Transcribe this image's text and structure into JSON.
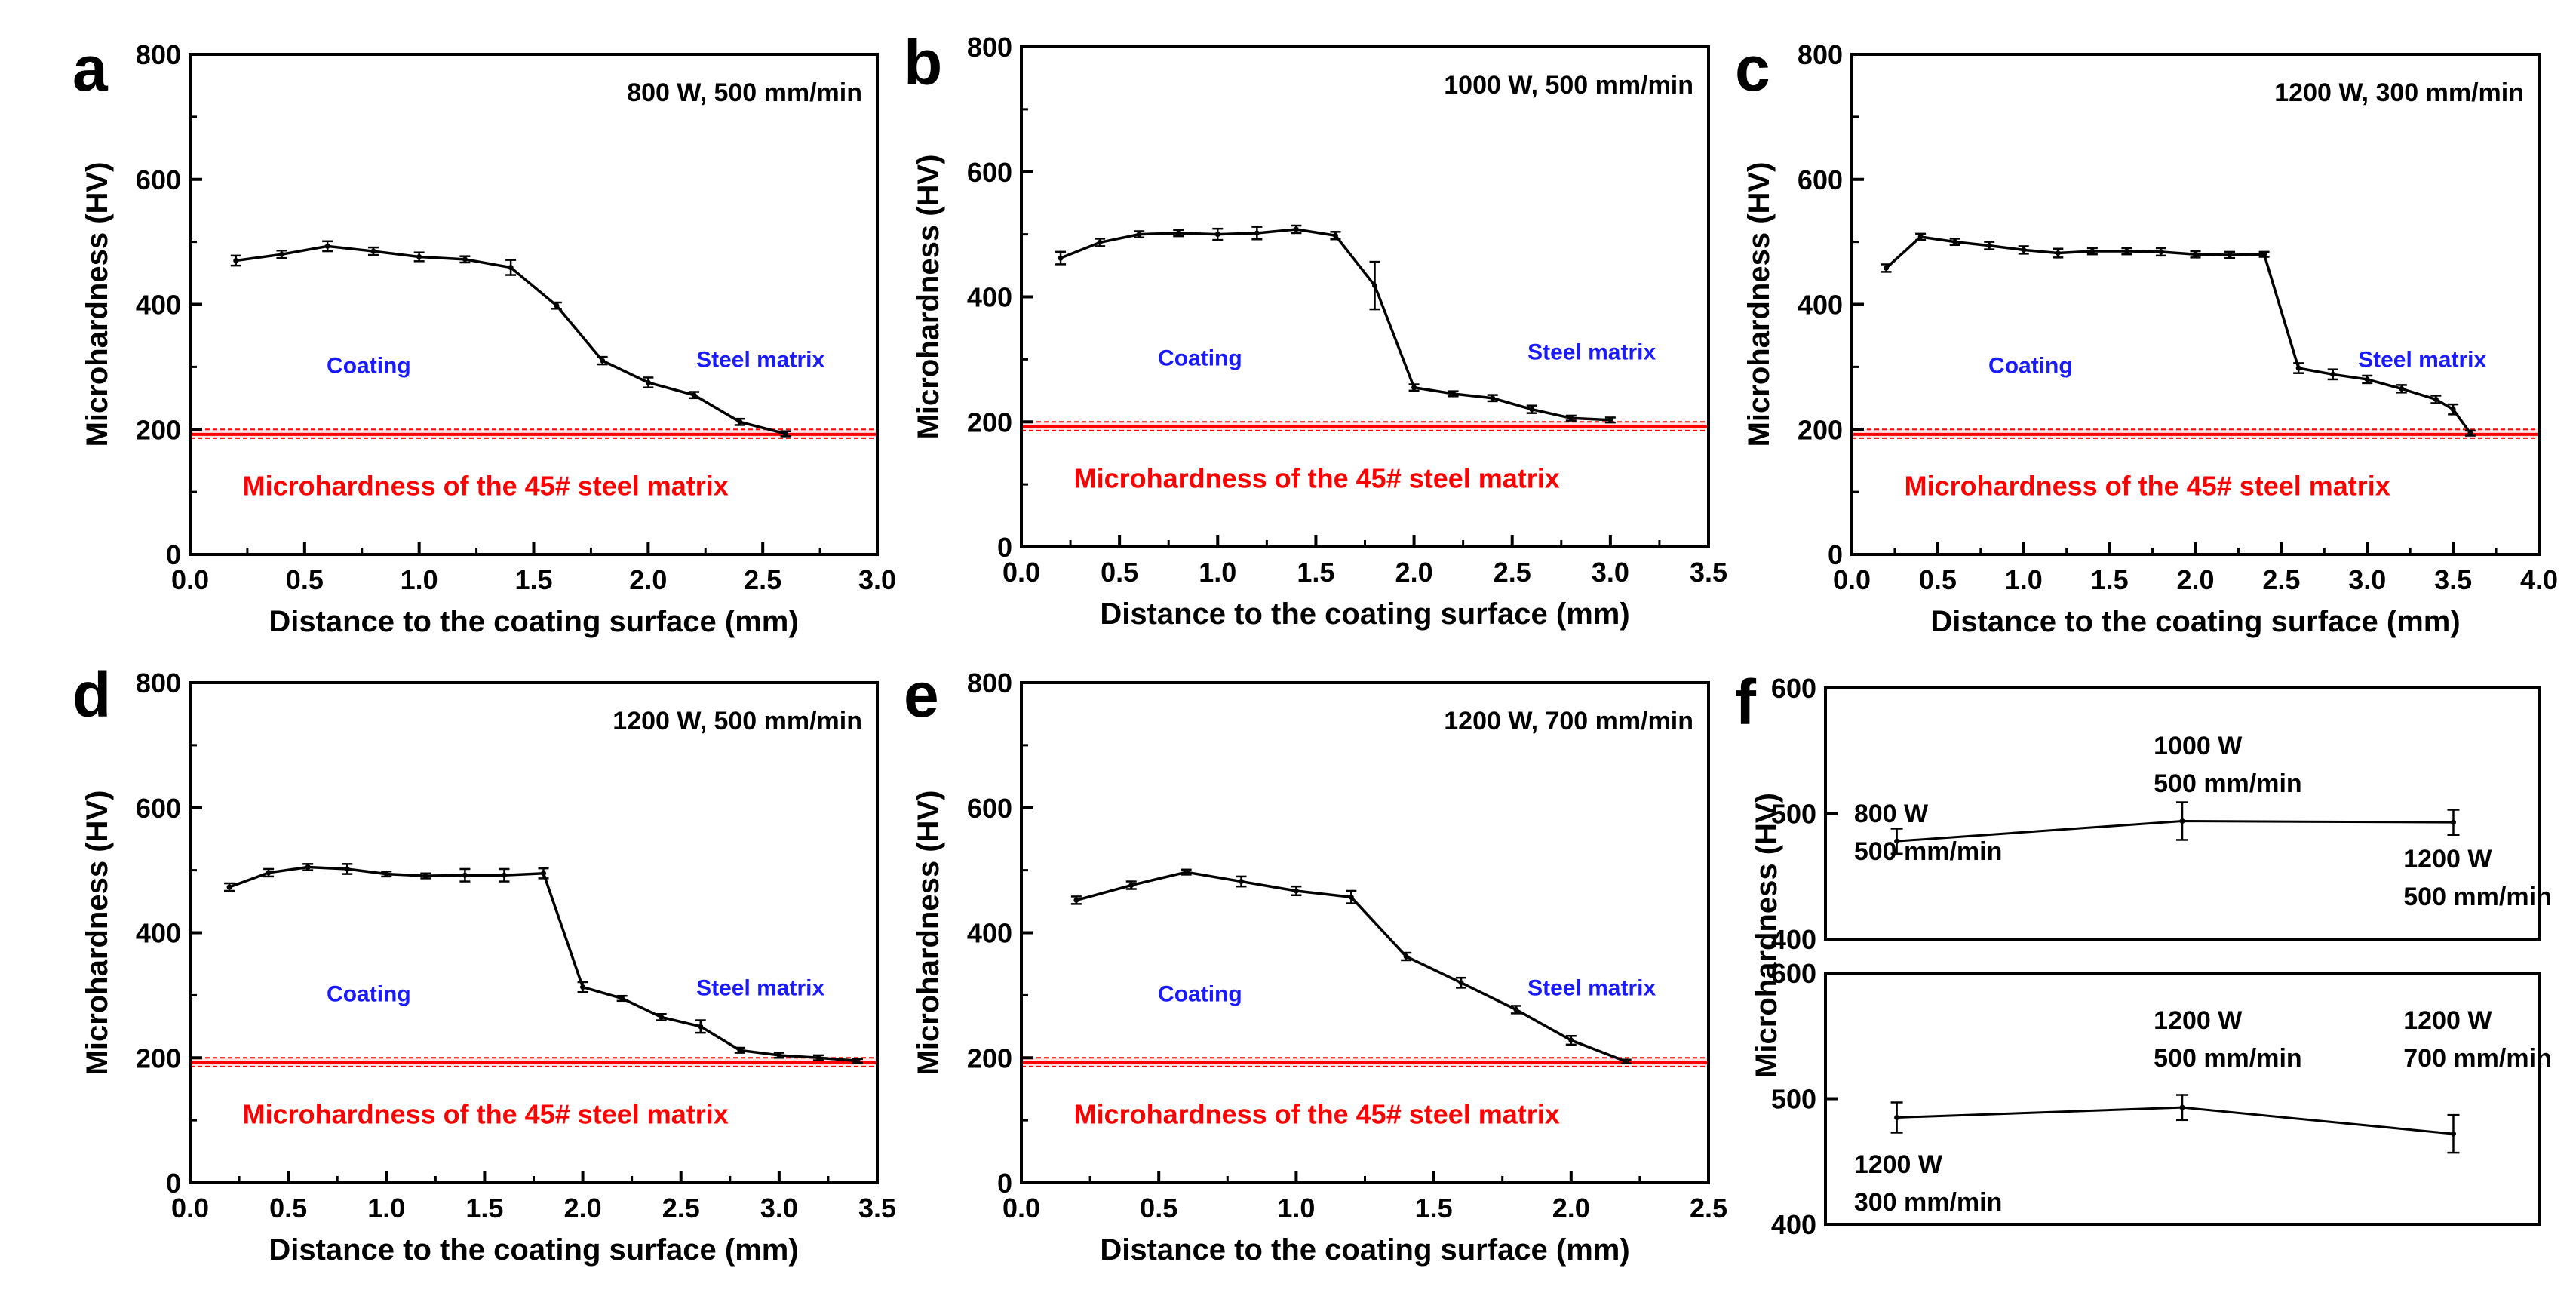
{
  "colors": {
    "axis": "#000000",
    "data": "#000000",
    "ref": "#ff0000",
    "zone": "#1a1aff"
  },
  "chart_data": [
    {
      "panel": "a",
      "type": "line",
      "condition": "800 W, 500 mm/min",
      "xlabel": "Distance to the coating surface (mm)",
      "ylabel": "Microhardness (HV)",
      "xlim": [
        0,
        3.0
      ],
      "ylim": [
        0,
        800
      ],
      "xticks": [
        "0.0",
        "0.5",
        "1.0",
        "1.5",
        "2.0",
        "2.5",
        "3.0"
      ],
      "yticks": [
        "0",
        "200",
        "400",
        "600",
        "800"
      ],
      "x": [
        0.2,
        0.4,
        0.6,
        0.8,
        1.0,
        1.2,
        1.4,
        1.6,
        1.8,
        2.0,
        2.2,
        2.4,
        2.6
      ],
      "y": [
        470,
        480,
        493,
        485,
        476,
        472,
        459,
        398,
        310,
        275,
        255,
        212,
        193
      ],
      "err": [
        8,
        6,
        8,
        6,
        7,
        5,
        12,
        5,
        6,
        8,
        5,
        5,
        4
      ],
      "reference": {
        "value": 192,
        "band": [
          186,
          200
        ],
        "label": "Microhardness of the 45# steel matrix"
      },
      "coating_label": "Coating",
      "matrix_label": "Steel matrix"
    },
    {
      "panel": "b",
      "type": "line",
      "condition": "1000 W, 500 mm/min",
      "xlabel": "Distance to the coating surface (mm)",
      "ylabel": "Microhardness (HV)",
      "xlim": [
        0,
        3.5
      ],
      "ylim": [
        0,
        800
      ],
      "xticks": [
        "0.0",
        "0.5",
        "1.0",
        "1.5",
        "2.0",
        "2.5",
        "3.0",
        "3.5"
      ],
      "yticks": [
        "0",
        "200",
        "400",
        "600",
        "800"
      ],
      "x": [
        0.2,
        0.4,
        0.6,
        0.8,
        1.0,
        1.2,
        1.4,
        1.6,
        1.8,
        2.0,
        2.2,
        2.4,
        2.6,
        2.8,
        3.0
      ],
      "y": [
        462,
        487,
        500,
        502,
        500,
        502,
        508,
        498,
        418,
        255,
        245,
        238,
        220,
        206,
        203
      ],
      "err": [
        10,
        6,
        5,
        5,
        9,
        10,
        6,
        6,
        38,
        5,
        4,
        5,
        6,
        4,
        4
      ],
      "reference": {
        "value": 192,
        "band": [
          186,
          200
        ],
        "label": "Microhardness of the 45# steel matrix"
      },
      "coating_label": "Coating",
      "matrix_label": "Steel matrix"
    },
    {
      "panel": "c",
      "type": "line",
      "condition": "1200 W, 300 mm/min",
      "xlabel": "Distance to the coating surface (mm)",
      "ylabel": "Microhardness (HV)",
      "xlim": [
        0,
        4.0
      ],
      "ylim": [
        0,
        800
      ],
      "xticks": [
        "0.0",
        "0.5",
        "1.0",
        "1.5",
        "2.0",
        "2.5",
        "3.0",
        "3.5",
        "4.0"
      ],
      "yticks": [
        "0",
        "200",
        "400",
        "600",
        "800"
      ],
      "x": [
        0.2,
        0.4,
        0.6,
        0.8,
        1.0,
        1.2,
        1.4,
        1.6,
        1.8,
        2.0,
        2.2,
        2.4,
        2.6,
        2.8,
        3.0,
        3.2,
        3.4,
        3.5,
        3.6
      ],
      "y": [
        458,
        508,
        500,
        494,
        487,
        482,
        485,
        485,
        484,
        480,
        479,
        480,
        298,
        288,
        280,
        265,
        248,
        232,
        194
      ],
      "err": [
        6,
        5,
        5,
        6,
        6,
        7,
        5,
        5,
        6,
        5,
        5,
        4,
        8,
        8,
        6,
        6,
        6,
        8,
        4
      ],
      "reference": {
        "value": 192,
        "band": [
          186,
          200
        ],
        "label": "Microhardness of the 45# steel matrix"
      },
      "coating_label": "Coating",
      "matrix_label": "Steel matrix"
    },
    {
      "panel": "d",
      "type": "line",
      "condition": "1200 W, 500 mm/min",
      "xlabel": "Distance to the coating surface (mm)",
      "ylabel": "Microhardness (HV)",
      "xlim": [
        0,
        3.5
      ],
      "ylim": [
        0,
        800
      ],
      "xticks": [
        "0.0",
        "0.5",
        "1.0",
        "1.5",
        "2.0",
        "2.5",
        "3.0",
        "3.5"
      ],
      "yticks": [
        "0",
        "200",
        "400",
        "600",
        "800"
      ],
      "x": [
        0.2,
        0.4,
        0.6,
        0.8,
        1.0,
        1.2,
        1.4,
        1.6,
        1.8,
        2.0,
        2.2,
        2.4,
        2.6,
        2.8,
        3.0,
        3.2,
        3.4
      ],
      "y": [
        473,
        496,
        505,
        502,
        494,
        491,
        492,
        492,
        495,
        313,
        295,
        265,
        250,
        212,
        204,
        200,
        195
      ],
      "err": [
        6,
        6,
        5,
        8,
        4,
        4,
        10,
        10,
        8,
        8,
        4,
        5,
        10,
        4,
        4,
        4,
        3
      ],
      "reference": {
        "value": 192,
        "band": [
          186,
          200
        ],
        "label": "Microhardness of the 45# steel matrix"
      },
      "coating_label": "Coating",
      "matrix_label": "Steel matrix"
    },
    {
      "panel": "e",
      "type": "line",
      "condition": "1200 W, 700 mm/min",
      "xlabel": "Distance to the coating surface (mm)",
      "ylabel": "Microhardness (HV)",
      "xlim": [
        0,
        2.5
      ],
      "ylim": [
        0,
        800
      ],
      "xticks": [
        "0.0",
        "0.5",
        "1.0",
        "1.5",
        "2.0",
        "2.5"
      ],
      "yticks": [
        "0",
        "200",
        "400",
        "600",
        "800"
      ],
      "x": [
        0.2,
        0.4,
        0.6,
        0.8,
        1.0,
        1.2,
        1.4,
        1.6,
        1.8,
        2.0,
        2.2
      ],
      "y": [
        452,
        476,
        497,
        482,
        467,
        457,
        362,
        320,
        277,
        228,
        194
      ],
      "err": [
        6,
        6,
        4,
        8,
        7,
        10,
        6,
        8,
        6,
        7,
        3
      ],
      "reference": {
        "value": 192,
        "band": [
          186,
          200
        ],
        "label": "Microhardness of the 45# steel matrix"
      },
      "coating_label": "Coating",
      "matrix_label": "Steel matrix"
    },
    {
      "panel": "f",
      "type": "line",
      "ylabel": "Microhardness (HV)",
      "subplots": [
        {
          "ylim": [
            400,
            600
          ],
          "yticks": [
            "400",
            "500",
            "600"
          ],
          "points": [
            {
              "value": 478,
              "err": 10,
              "label1": "800 W",
              "label2": "500 mm/min"
            },
            {
              "value": 494,
              "err": 15,
              "label1": "1000 W",
              "label2": "500 mm/min"
            },
            {
              "value": 493,
              "err": 10,
              "label1": "1200 W",
              "label2": "500 mm/min"
            }
          ]
        },
        {
          "ylim": [
            400,
            600
          ],
          "yticks": [
            "400",
            "500",
            "600"
          ],
          "points": [
            {
              "value": 485,
              "err": 12,
              "label1": "1200 W",
              "label2": "300 mm/min"
            },
            {
              "value": 493,
              "err": 10,
              "label1": "1200 W",
              "label2": "500 mm/min"
            },
            {
              "value": 472,
              "err": 15,
              "label1": "1200 W",
              "label2": "700 mm/min"
            }
          ]
        }
      ]
    }
  ]
}
